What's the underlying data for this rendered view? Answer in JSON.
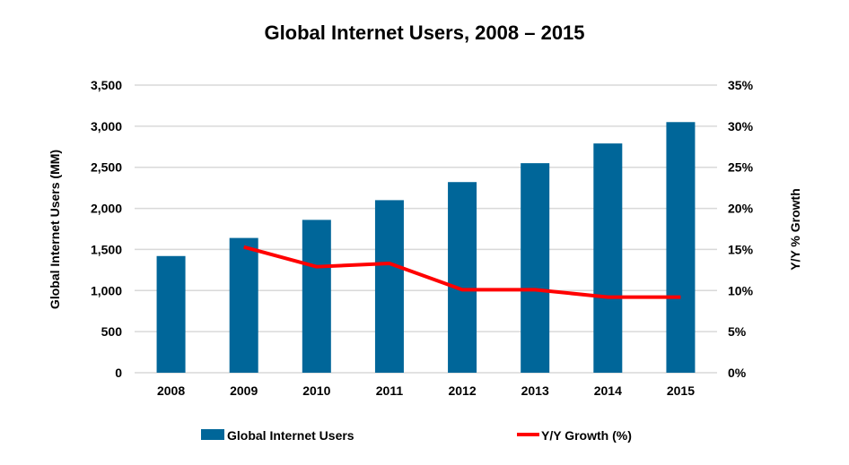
{
  "chart_data": {
    "type": "bar",
    "title": "Global Internet Users, 2008 – 2015",
    "categories": [
      "2008",
      "2009",
      "2010",
      "2011",
      "2012",
      "2013",
      "2014",
      "2015"
    ],
    "series": [
      {
        "name": "Global Internet Users",
        "type": "bar",
        "axis": "left",
        "color": "#006699",
        "values": [
          1420,
          1640,
          1860,
          2100,
          2320,
          2550,
          2790,
          3050
        ]
      },
      {
        "name": "Y/Y Growth (%)",
        "type": "line",
        "axis": "right",
        "color": "#ff0000",
        "values": [
          null,
          15.3,
          12.9,
          13.3,
          10.1,
          10.1,
          9.2,
          9.2
        ]
      }
    ],
    "ylabel": "Global Internet Users (MM)",
    "ylabel_right": "Y/Y % Growth",
    "xlabel": "",
    "ylim": [
      0,
      3500
    ],
    "ylim_right": [
      0,
      35
    ],
    "yticks": [
      "0",
      "500",
      "1,000",
      "1,500",
      "2,000",
      "2,500",
      "3,000",
      "3,500"
    ],
    "yticks_right": [
      "0%",
      "5%",
      "10%",
      "15%",
      "20%",
      "25%",
      "30%",
      "35%"
    ],
    "grid": true,
    "legend_position": "bottom",
    "gridline_color": "#d9d9d9"
  }
}
